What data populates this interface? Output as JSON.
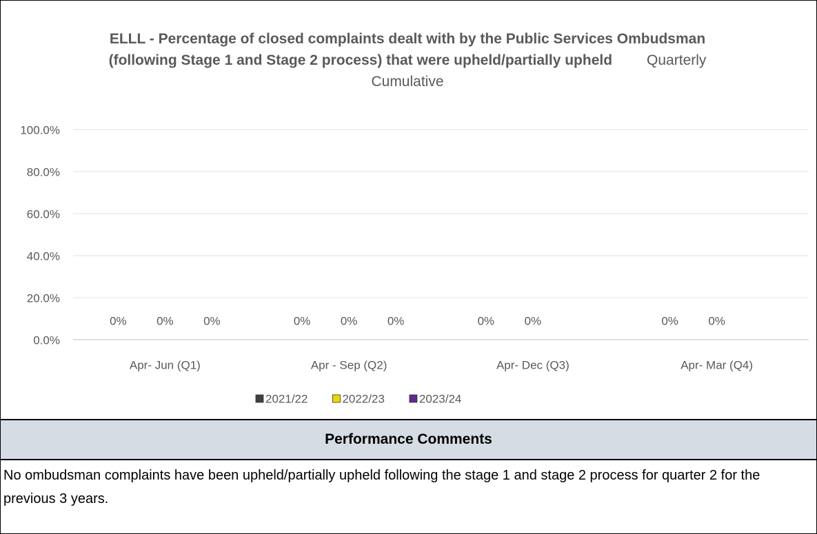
{
  "chart_data": {
    "type": "bar",
    "title": "ELLL - Percentage of closed complaints dealt with by the Public Services Ombudsman (following Stage 1 and Stage 2 process) that were upheld/partially upheld",
    "subtitle": "Quarterly Cumulative",
    "categories": [
      "Apr- Jun  (Q1)",
      "Apr - Sep  (Q2)",
      "Apr- Dec  (Q3)",
      "Apr- Mar  (Q4)"
    ],
    "series": [
      {
        "name": "2021/22",
        "color": "#404040",
        "values": [
          0,
          0,
          0,
          0
        ],
        "value_labels": [
          "0%",
          "0%",
          "0%",
          "0%"
        ]
      },
      {
        "name": "2022/23",
        "color": "#e8d800",
        "values": [
          0,
          0,
          0,
          0
        ],
        "value_labels": [
          "0%",
          "0%",
          "0%",
          "0%"
        ]
      },
      {
        "name": "2023/24",
        "color": "#5b2c8f",
        "values": [
          0,
          0,
          null,
          null
        ],
        "value_labels": [
          "0%",
          "0%",
          null,
          null
        ]
      }
    ],
    "ylim": [
      0,
      100
    ],
    "yticks": [
      {
        "value": 0,
        "label": "0.0%"
      },
      {
        "value": 20,
        "label": "20.0%"
      },
      {
        "value": 40,
        "label": "40.0%"
      },
      {
        "value": 60,
        "label": "60.0%"
      },
      {
        "value": 80,
        "label": "80.0%"
      },
      {
        "value": 100,
        "label": "100.0%"
      }
    ],
    "grid": true,
    "legend": "bottom"
  },
  "comments": {
    "title": "Performance Comments",
    "text": "No ombudsman complaints have been upheld/partially upheld following the stage 1 and stage 2 process for quarter 2 for the previous 3 years."
  }
}
